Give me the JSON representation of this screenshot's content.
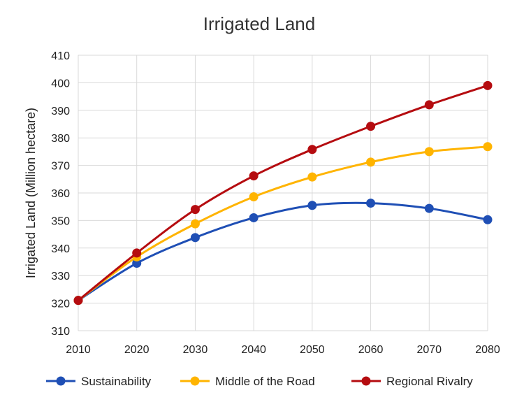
{
  "chart_data": {
    "type": "line",
    "title": "Irrigated Land",
    "xlabel": "",
    "ylabel": "Irrigated Land  (Million hectare)",
    "x": [
      2010,
      2020,
      2030,
      2040,
      2050,
      2060,
      2070,
      2080
    ],
    "xlim": [
      2010,
      2080
    ],
    "ylim": [
      310,
      410
    ],
    "yticks": [
      310,
      320,
      330,
      340,
      350,
      360,
      370,
      380,
      390,
      400,
      410
    ],
    "grid": true,
    "smooth": true,
    "legend_position": "bottom",
    "series": [
      {
        "name": "Sustainability",
        "color": "#1f4fb5",
        "values": [
          321,
          334.5,
          343.8,
          351,
          355.5,
          356.3,
          354.4,
          350.3
        ]
      },
      {
        "name": "Middle of the Road",
        "color": "#ffb400",
        "values": [
          321,
          336.8,
          348.8,
          358.6,
          365.8,
          371.2,
          375,
          376.8
        ]
      },
      {
        "name": "Regional Rivalry",
        "color": "#b50c10",
        "values": [
          321,
          338.2,
          354,
          366.2,
          375.8,
          384.2,
          392,
          399
        ]
      }
    ]
  }
}
